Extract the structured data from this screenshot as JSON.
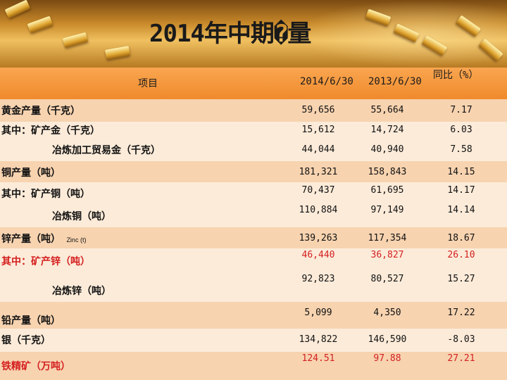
{
  "title": "2014年中期�量",
  "header": {
    "item": "项目",
    "col1": "2014/6/30",
    "col2": "2013/6/30",
    "col3": "同比（%）"
  },
  "rows": [
    {
      "label": "黄金产量（千克）",
      "v1": "59,656",
      "v2": "55,664",
      "v3": "7.17"
    },
    {
      "label": "其中：矿产金（千克）",
      "v1": "15,612",
      "v2": "14,724",
      "v3": "6.03"
    },
    {
      "label": "冶炼加工贸易金（千克）",
      "v1": "44,044",
      "v2": "40,940",
      "v3": "7.58"
    },
    {
      "label": "铜产量（吨）",
      "v1": "181,321",
      "v2": "158,843",
      "v3": "14.15"
    },
    {
      "label": "其中：矿产铜（吨）",
      "v1": "70,437",
      "v2": "61,695",
      "v3": "14.17"
    },
    {
      "label": "冶炼铜（吨）",
      "v1": "110,884",
      "v2": "97,149",
      "v3": "14.14"
    },
    {
      "label": "锌产量（吨）",
      "label_suffix": "Zinc (t)",
      "v1": "139,263",
      "v2": "117,354",
      "v3": "18.67"
    },
    {
      "label": "其中：矿产锌（吨）",
      "v1": "46,440",
      "v2": "36,827",
      "v3": "26.10"
    },
    {
      "label": "冶炼锌（吨）",
      "v1": "92,823",
      "v2": "80,527",
      "v3": "15.27"
    },
    {
      "label": "铅产量（吨）",
      "v1": "5,099",
      "v2": "4,350",
      "v3": "17.22"
    },
    {
      "label": "银（千克）",
      "v1": "134,822",
      "v2": "146,590",
      "v3": "-8.03"
    },
    {
      "label": "铁精矿（万吨）",
      "v1": "124.51",
      "v2": "97.88",
      "v3": "27.21"
    }
  ],
  "colors": {
    "header": "#f08a2c",
    "row_dark": "#f7d3b0",
    "row_light": "#fcebd9",
    "highlight": "#d42020"
  }
}
